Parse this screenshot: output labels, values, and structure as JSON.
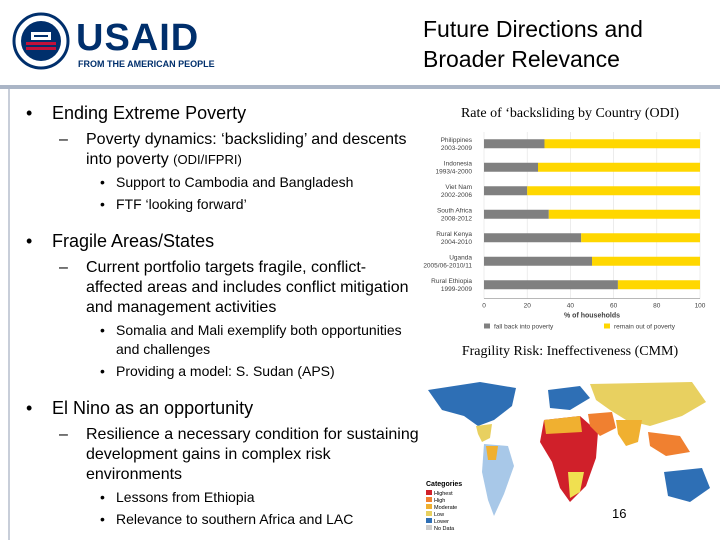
{
  "header": {
    "logo_text": "USAID",
    "logo_tagline": "FROM THE AMERICAN PEOPLE",
    "title_line1": "Future Directions and",
    "title_line2": "Broader Relevance"
  },
  "bullets": {
    "b1": "Ending Extreme Poverty",
    "b1_sub1_a": "Poverty dynamics: ‘backsliding’ and descents into poverty",
    "b1_sub1_b": "(ODI/IFPRI)",
    "b1_sub1_i1": "Support to Cambodia and Bangladesh",
    "b1_sub1_i2": "FTF ‘looking forward’",
    "b2": "Fragile Areas/States",
    "b2_sub1": "Current portfolio targets fragile, conflict-affected areas and includes conflict mitigation and management activities",
    "b2_sub1_i1": "Somalia and Mali exemplify both opportunities and challenges",
    "b2_sub1_i2": "Providing a model: S. Sudan (APS)",
    "b3": "El Nino as an opportunity",
    "b3_sub1": "Resilience a necessary condition for sustaining development gains in complex risk environments",
    "b3_sub1_i1": "Lessons from Ethiopia",
    "b3_sub1_i2": "Relevance to southern Africa and LAC"
  },
  "chart_caption": "Rate of ‘backsliding by Country (ODI)",
  "map_caption": "Fragility Risk: Ineffectiveness (CMM)",
  "map_legend": {
    "title": "Categories",
    "items": [
      "Highest",
      "High",
      "Moderate",
      "Low",
      "Lower",
      "No Data"
    ]
  },
  "page_number": "16",
  "colors": {
    "brand_navy": "#002f6c",
    "brand_red": "#c2113a",
    "bar_gray": "#808080",
    "bar_yellow": "#ffd700"
  },
  "chart_data": {
    "type": "bar",
    "orientation": "horizontal",
    "stacked": true,
    "categories": [
      [
        "Philippines",
        "2003-2009"
      ],
      [
        "Indonesia",
        "1993/4-2000"
      ],
      [
        "Viet Nam",
        "2002-2006"
      ],
      [
        "South Africa",
        "2008-2012"
      ],
      [
        "Rural Kenya",
        "2004-2010"
      ],
      [
        "Uganda",
        "2005/06-2010/11"
      ],
      [
        "Rural Ethiopia",
        "1999-2009"
      ]
    ],
    "series": [
      {
        "name": "fall back into poverty",
        "values": [
          28,
          25,
          20,
          30,
          45,
          50,
          62
        ]
      },
      {
        "name": "remain out of poverty",
        "values": [
          72,
          75,
          80,
          70,
          55,
          50,
          38
        ]
      }
    ],
    "xlim": [
      0,
      100
    ],
    "xticks": [
      0,
      20,
      40,
      60,
      80,
      100
    ],
    "xlabel": "% of households",
    "legend": "bottom"
  }
}
